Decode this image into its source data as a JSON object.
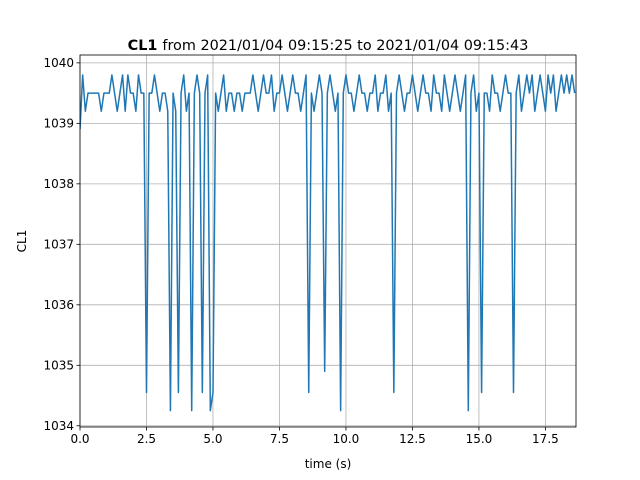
{
  "chart_data": {
    "type": "line",
    "title_name": "CL1",
    "title": "from 2021/01/04 09:15:25 to 2021/01/04 09:15:43",
    "x_label": "time (s)",
    "y_label": "CL1",
    "xlim": [
      0,
      18.65
    ],
    "ylim": [
      1033.98,
      1040.13
    ],
    "xticks": [
      {
        "value": 0,
        "label": "0.0"
      },
      2.5,
      {
        "value": 5,
        "label": "5.0"
      },
      7.5,
      {
        "value": 10,
        "label": "10.0"
      },
      12.5,
      {
        "value": 15,
        "label": "15.0"
      },
      17.5
    ],
    "yticks": [
      1034,
      1035,
      1036,
      1037,
      1038,
      1039,
      1040
    ],
    "grid": true,
    "x": [
      0,
      0.1,
      0.2,
      0.3,
      0.4,
      0.5,
      0.6,
      0.7,
      0.8,
      0.9,
      1,
      1.1,
      1.2,
      1.3,
      1.4,
      1.5,
      1.6,
      1.7,
      1.8,
      1.9,
      2,
      2.1,
      2.2,
      2.3,
      2.4,
      2.5,
      2.6,
      2.7,
      2.8,
      2.9,
      3,
      3.1,
      3.2,
      3.3,
      3.4,
      3.5,
      3.6,
      3.7,
      3.8,
      3.9,
      4,
      4.1,
      4.2,
      4.3,
      4.4,
      4.5,
      4.6,
      4.7,
      4.8,
      4.9,
      5,
      5.1,
      5.2,
      5.3,
      5.4,
      5.5,
      5.6,
      5.7,
      5.8,
      5.9,
      6,
      6.1,
      6.2,
      6.3,
      6.4,
      6.5,
      6.6,
      6.7,
      6.8,
      6.9,
      7,
      7.1,
      7.2,
      7.3,
      7.4,
      7.5,
      7.6,
      7.7,
      7.8,
      7.9,
      8,
      8.1,
      8.2,
      8.3,
      8.4,
      8.5,
      8.6,
      8.7,
      8.8,
      8.9,
      9,
      9.1,
      9.2,
      9.3,
      9.4,
      9.5,
      9.6,
      9.7,
      9.8,
      9.9,
      10,
      10.1,
      10.2,
      10.3,
      10.4,
      10.5,
      10.6,
      10.7,
      10.8,
      10.9,
      11,
      11.1,
      11.2,
      11.3,
      11.4,
      11.5,
      11.6,
      11.7,
      11.8,
      11.9,
      12,
      12.1,
      12.2,
      12.3,
      12.4,
      12.5,
      12.6,
      12.7,
      12.8,
      12.9,
      13,
      13.1,
      13.2,
      13.3,
      13.4,
      13.5,
      13.6,
      13.7,
      13.8,
      13.9,
      14,
      14.1,
      14.2,
      14.3,
      14.4,
      14.5,
      14.6,
      14.7,
      14.8,
      14.9,
      15,
      15.1,
      15.2,
      15.3,
      15.4,
      15.5,
      15.6,
      15.7,
      15.8,
      15.9,
      16,
      16.1,
      16.2,
      16.3,
      16.4,
      16.5,
      16.6,
      16.7,
      16.8,
      16.9,
      17,
      17.1,
      17.2,
      17.3,
      17.4,
      17.5,
      17.6,
      17.7,
      17.8,
      17.9,
      18,
      18.1,
      18.2,
      18.3,
      18.4,
      18.5,
      18.6
    ],
    "series": [
      {
        "name": "CL1",
        "color": "#1f77b4",
        "values": [
          1038.9,
          1039.8,
          1039.2,
          1039.5,
          1039.5,
          1039.5,
          1039.5,
          1039.5,
          1039.2,
          1039.5,
          1039.5,
          1039.5,
          1039.8,
          1039.5,
          1039.2,
          1039.5,
          1039.8,
          1039.2,
          1039.8,
          1039.5,
          1039.5,
          1039.2,
          1039.8,
          1039.5,
          1039.5,
          1034.55,
          1039.5,
          1039.5,
          1039.8,
          1039.5,
          1039.2,
          1039.5,
          1039.5,
          1039.2,
          1034.25,
          1039.5,
          1039.2,
          1034.55,
          1039.5,
          1039.8,
          1039.2,
          1039.5,
          1034.25,
          1039.5,
          1039.8,
          1039.5,
          1034.55,
          1039.5,
          1039.8,
          1034.25,
          1034.55,
          1039.5,
          1039.2,
          1039.5,
          1039.8,
          1039.2,
          1039.5,
          1039.5,
          1039.2,
          1039.5,
          1039.5,
          1039.2,
          1039.5,
          1039.5,
          1039.5,
          1039.8,
          1039.5,
          1039.2,
          1039.5,
          1039.8,
          1039.5,
          1039.5,
          1039.8,
          1039.2,
          1039.5,
          1039.5,
          1039.8,
          1039.5,
          1039.2,
          1039.5,
          1039.8,
          1039.5,
          1039.5,
          1039.2,
          1039.5,
          1039.8,
          1034.55,
          1039.5,
          1039.2,
          1039.5,
          1039.8,
          1039.5,
          1034.9,
          1039.5,
          1039.8,
          1039.5,
          1039.2,
          1039.5,
          1034.25,
          1039.5,
          1039.8,
          1039.5,
          1039.5,
          1039.2,
          1039.5,
          1039.8,
          1039.5,
          1039.5,
          1039.2,
          1039.5,
          1039.5,
          1039.8,
          1039.2,
          1039.5,
          1039.5,
          1039.8,
          1039.2,
          1039.5,
          1034.55,
          1039.5,
          1039.8,
          1039.5,
          1039.2,
          1039.5,
          1039.5,
          1039.8,
          1039.5,
          1039.2,
          1039.5,
          1039.8,
          1039.5,
          1039.5,
          1039.2,
          1039.8,
          1039.5,
          1039.5,
          1039.2,
          1039.8,
          1039.5,
          1039.2,
          1039.5,
          1039.8,
          1039.5,
          1039.2,
          1039.5,
          1039.8,
          1034.25,
          1039.5,
          1039.8,
          1039.2,
          1039.5,
          1034.55,
          1039.5,
          1039.5,
          1039.2,
          1039.8,
          1039.5,
          1039.5,
          1039.2,
          1039.5,
          1039.8,
          1039.5,
          1039.5,
          1034.55,
          1039.5,
          1039.8,
          1039.2,
          1039.5,
          1039.8,
          1039.5,
          1039.8,
          1039.2,
          1039.5,
          1039.8,
          1039.5,
          1039.2,
          1039.8,
          1039.5,
          1039.8,
          1039.2,
          1039.5,
          1039.8,
          1039.5,
          1039.8,
          1039.5,
          1039.8,
          1039.5
        ]
      }
    ]
  }
}
